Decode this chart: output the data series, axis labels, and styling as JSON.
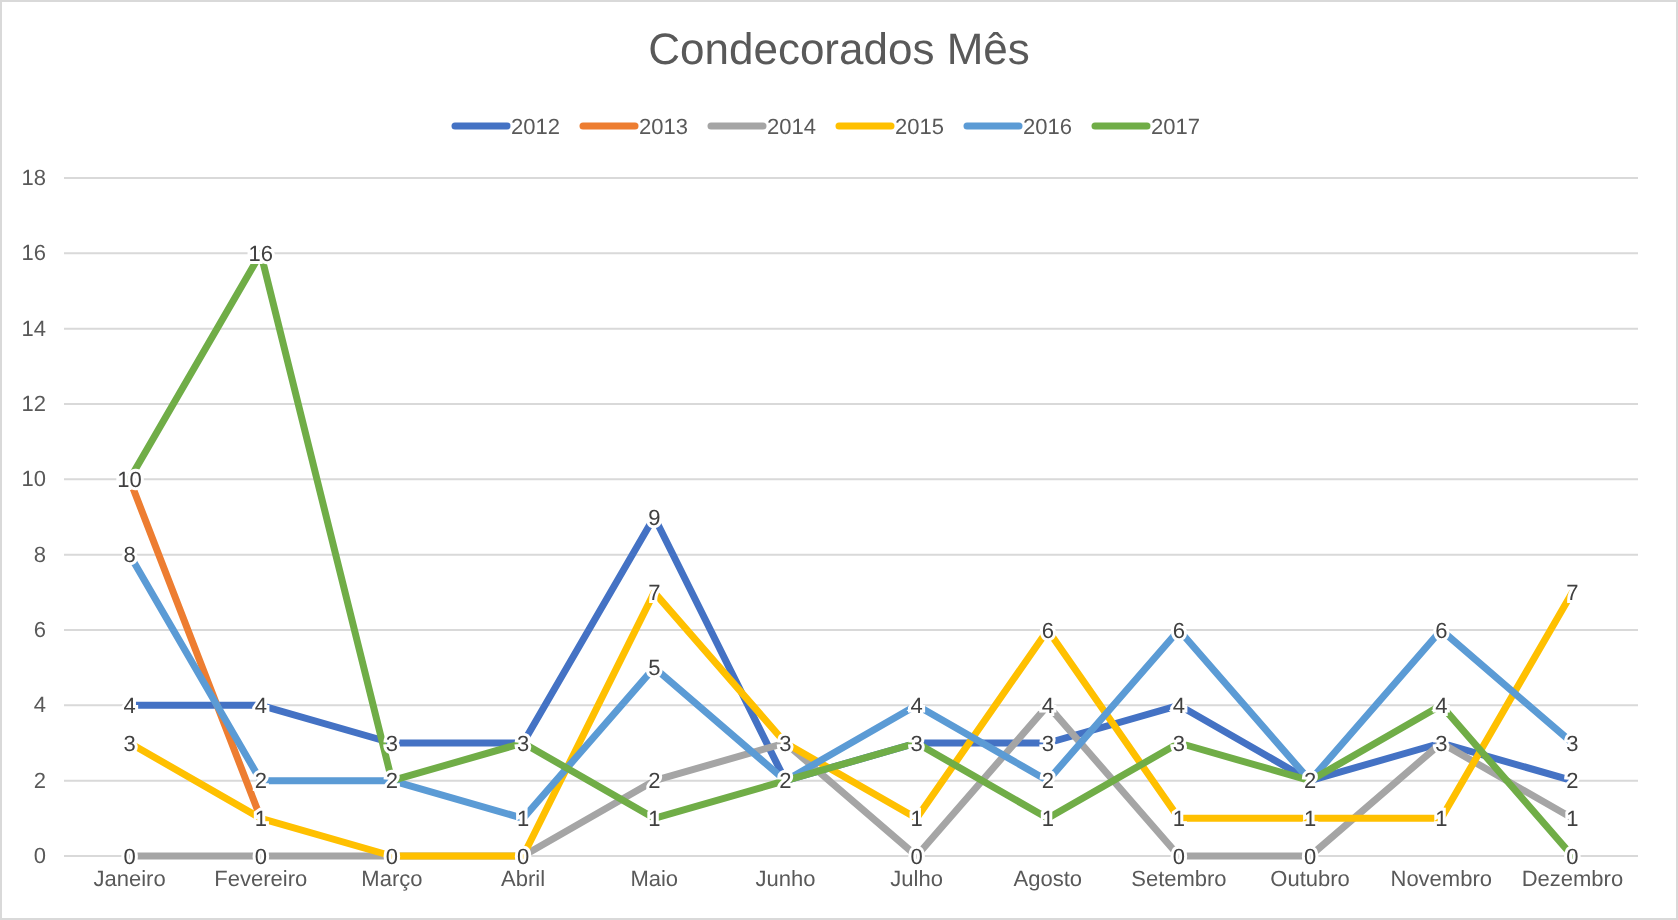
{
  "chart_data": {
    "type": "line",
    "title": "Condecorados Mês",
    "categories": [
      "Janeiro",
      "Fevereiro",
      "Março",
      "Abril",
      "Maio",
      "Junho",
      "Julho",
      "Agosto",
      "Setembro",
      "Outubro",
      "Novembro",
      "Dezembro"
    ],
    "series": [
      {
        "name": "2012",
        "color": "#4472c4",
        "values": [
          4,
          4,
          3,
          3,
          9,
          2,
          3,
          3,
          4,
          2,
          3,
          2
        ],
        "value_labels": [
          "4",
          "4",
          "3",
          "3",
          "9",
          "2",
          "3",
          "3",
          "4",
          "2",
          "3",
          "2"
        ]
      },
      {
        "name": "2013",
        "color": "#ed7d31",
        "values": [
          10,
          1,
          null,
          null,
          null,
          null,
          null,
          null,
          null,
          null,
          null,
          null
        ],
        "value_labels": [
          "10",
          "1",
          null,
          null,
          null,
          null,
          null,
          null,
          null,
          null,
          null,
          null
        ]
      },
      {
        "name": "2014",
        "color": "#a5a5a5",
        "values": [
          0,
          0,
          0,
          0,
          2,
          3,
          0,
          4,
          0,
          0,
          3,
          1
        ],
        "value_labels": [
          "0",
          "0",
          "0",
          "0",
          "2",
          "3",
          "0",
          "4",
          "0",
          "0",
          null,
          "1"
        ]
      },
      {
        "name": "2015",
        "color": "#ffc000",
        "values": [
          3,
          1,
          0,
          0,
          7,
          3,
          1,
          6,
          1,
          1,
          1,
          7
        ],
        "value_labels": [
          "3",
          null,
          null,
          null,
          "7",
          null,
          "1",
          "6",
          "1",
          "1",
          "1",
          "7"
        ]
      },
      {
        "name": "2016",
        "color": "#5b9bd5",
        "values": [
          8,
          2,
          2,
          1,
          5,
          2,
          4,
          2,
          6,
          2,
          6,
          3
        ],
        "value_labels": [
          "8",
          "2",
          "2",
          "1",
          "5",
          null,
          "4",
          "2",
          "6",
          null,
          "6",
          "3"
        ]
      },
      {
        "name": "2017",
        "color": "#70ad47",
        "values": [
          10,
          16,
          2,
          3,
          1,
          2,
          3,
          1,
          3,
          2,
          4,
          0
        ],
        "value_labels": [
          null,
          "16",
          null,
          null,
          "1",
          null,
          null,
          "1",
          "3",
          null,
          "4",
          "0"
        ]
      }
    ],
    "ylim": [
      0,
      18
    ],
    "yticks": [
      0,
      2,
      4,
      6,
      8,
      10,
      12,
      14,
      16,
      18
    ],
    "grid": "y",
    "legend": "top",
    "marker": "none",
    "line_style": "solid"
  }
}
